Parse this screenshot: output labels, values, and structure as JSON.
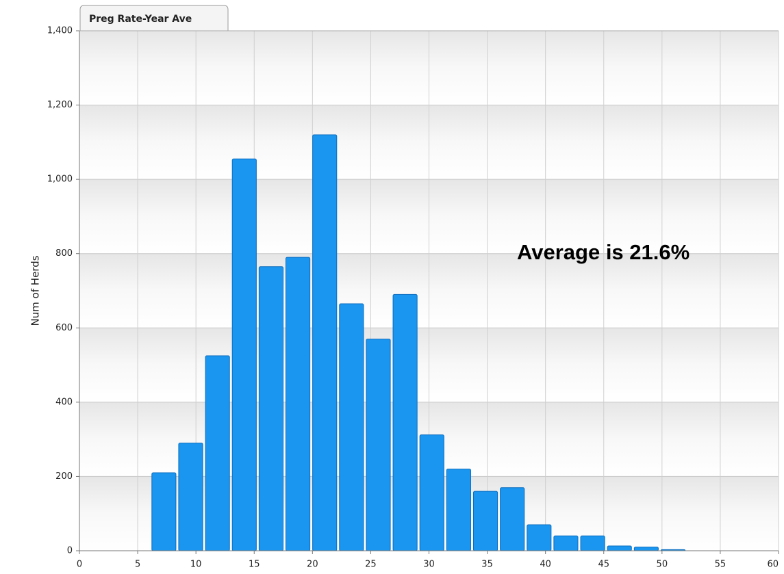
{
  "chart_data": {
    "type": "histogram",
    "title": "Preg Rate-Year Ave",
    "ylabel": "Num of Herds",
    "annotation": "Average is 21.6%",
    "bins": [
      6.1,
      8.4,
      10.7,
      13.0,
      15.3,
      17.6,
      19.9,
      22.2,
      24.5,
      26.8,
      29.1,
      31.4,
      33.7,
      36.0,
      38.3,
      40.6,
      42.9,
      45.2,
      47.5,
      49.8,
      52.1
    ],
    "values": [
      210,
      290,
      525,
      1055,
      765,
      790,
      1120,
      665,
      570,
      690,
      312,
      220,
      160,
      170,
      70,
      40,
      40,
      13,
      10,
      3
    ],
    "color": "#1a96f0",
    "xlim": [
      0,
      60
    ],
    "xticks": [
      0,
      5,
      10,
      15,
      20,
      25,
      30,
      35,
      40,
      45,
      50,
      55,
      60
    ],
    "ylim": [
      0,
      1400
    ],
    "yticks": [
      0,
      200,
      400,
      600,
      800,
      {
        "value": 1000,
        "label": "1,000"
      },
      {
        "value": 1200,
        "label": "1,200"
      },
      {
        "value": 1400,
        "label": "1,400"
      }
    ],
    "grid": true
  }
}
